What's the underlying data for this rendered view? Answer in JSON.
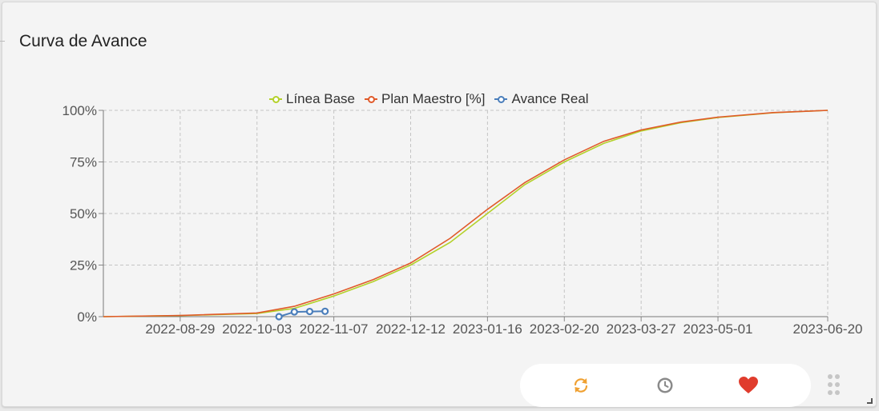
{
  "widget": {
    "title": "Curva de Avance"
  },
  "toolbar": {
    "refresh_icon": "refresh-icon",
    "history_icon": "clock-icon",
    "favorite_icon": "heart-icon",
    "colors": {
      "refresh": "#f0a030",
      "history": "#888888",
      "favorite": "#e03c2d"
    }
  },
  "chart_data": {
    "type": "line",
    "x_axis": {
      "type": "date",
      "range": [
        "2022-07-25",
        "2023-06-20"
      ],
      "tick_labels": [
        "2022-08-29",
        "2022-10-03",
        "2022-11-07",
        "2022-12-12",
        "2023-01-16",
        "2023-02-20",
        "2023-03-27",
        "2023-05-01",
        "2023-06-20"
      ]
    },
    "y_axis": {
      "range": [
        0,
        100
      ],
      "tick_labels": [
        "0%",
        "25%",
        "50%",
        "75%",
        "100%"
      ]
    },
    "grid": true,
    "legend": "top-center",
    "series": [
      {
        "name": "Línea Base",
        "color": "#b4d12a",
        "x": [
          "2022-07-25",
          "2022-08-29",
          "2022-10-03",
          "2022-10-20",
          "2022-11-07",
          "2022-11-25",
          "2022-12-12",
          "2022-12-30",
          "2023-01-16",
          "2023-02-02",
          "2023-02-20",
          "2023-03-10",
          "2023-03-27",
          "2023-04-14",
          "2023-05-01",
          "2023-05-26",
          "2023-06-20"
        ],
        "values": [
          0,
          0.5,
          1.5,
          4,
          10,
          17,
          25,
          36,
          50,
          64,
          75,
          84,
          90,
          94,
          96.5,
          98.8,
          100
        ]
      },
      {
        "name": "Plan Maestro [%]",
        "color": "#e05a2a",
        "x": [
          "2022-07-25",
          "2022-08-29",
          "2022-10-03",
          "2022-10-20",
          "2022-11-07",
          "2022-11-25",
          "2022-12-12",
          "2022-12-30",
          "2023-01-16",
          "2023-02-02",
          "2023-02-20",
          "2023-03-10",
          "2023-03-27",
          "2023-04-14",
          "2023-05-01",
          "2023-05-26",
          "2023-06-20"
        ],
        "values": [
          0,
          0.6,
          1.8,
          5,
          11,
          18,
          26,
          38,
          52,
          65,
          76,
          85,
          90.5,
          94.3,
          96.7,
          98.9,
          100
        ]
      },
      {
        "name": "Avance Real",
        "color": "#4a7ebb",
        "x": [
          "2022-10-13",
          "2022-10-20",
          "2022-10-27",
          "2022-11-03"
        ],
        "values": [
          0,
          2.3,
          2.5,
          2.6
        ]
      }
    ]
  }
}
